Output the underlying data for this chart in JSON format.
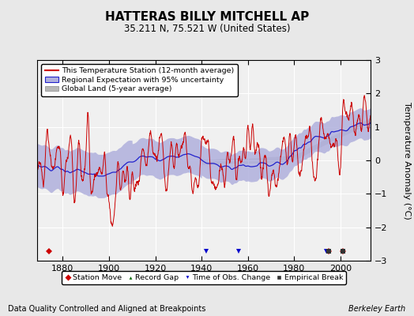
{
  "title": "HATTERAS BILLY MITCHELL AP",
  "subtitle": "35.211 N, 75.521 W (United States)",
  "ylabel": "Temperature Anomaly (°C)",
  "footer_left": "Data Quality Controlled and Aligned at Breakpoints",
  "footer_right": "Berkeley Earth",
  "year_start": 1869,
  "year_end": 2013,
  "ylim": [
    -3,
    3
  ],
  "yticks": [
    -3,
    -2,
    -1,
    0,
    1,
    2,
    3
  ],
  "xticks": [
    1880,
    1900,
    1920,
    1940,
    1960,
    1980,
    2000
  ],
  "bg_color": "#e8e8e8",
  "plot_bg_color": "#f0f0f0",
  "station_line_color": "#cc0000",
  "regional_line_color": "#2222cc",
  "regional_fill_color": "#b0b0dd",
  "global_fill_color": "#b8b8b8",
  "legend_entries": [
    "This Temperature Station (12-month average)",
    "Regional Expectation with 95% uncertainty",
    "Global Land (5-year average)"
  ],
  "marker_legend": [
    {
      "label": "Station Move",
      "color": "#cc0000",
      "marker": "D"
    },
    {
      "label": "Record Gap",
      "color": "#006600",
      "marker": "^"
    },
    {
      "label": "Time of Obs. Change",
      "color": "#0000cc",
      "marker": "v"
    },
    {
      "label": "Empirical Break",
      "color": "#333333",
      "marker": "s"
    }
  ],
  "station_moves": [
    1874,
    1995,
    2001
  ],
  "empirical_breaks": [
    1995,
    2001
  ],
  "obs_changes": [
    1942,
    1956,
    1994
  ]
}
